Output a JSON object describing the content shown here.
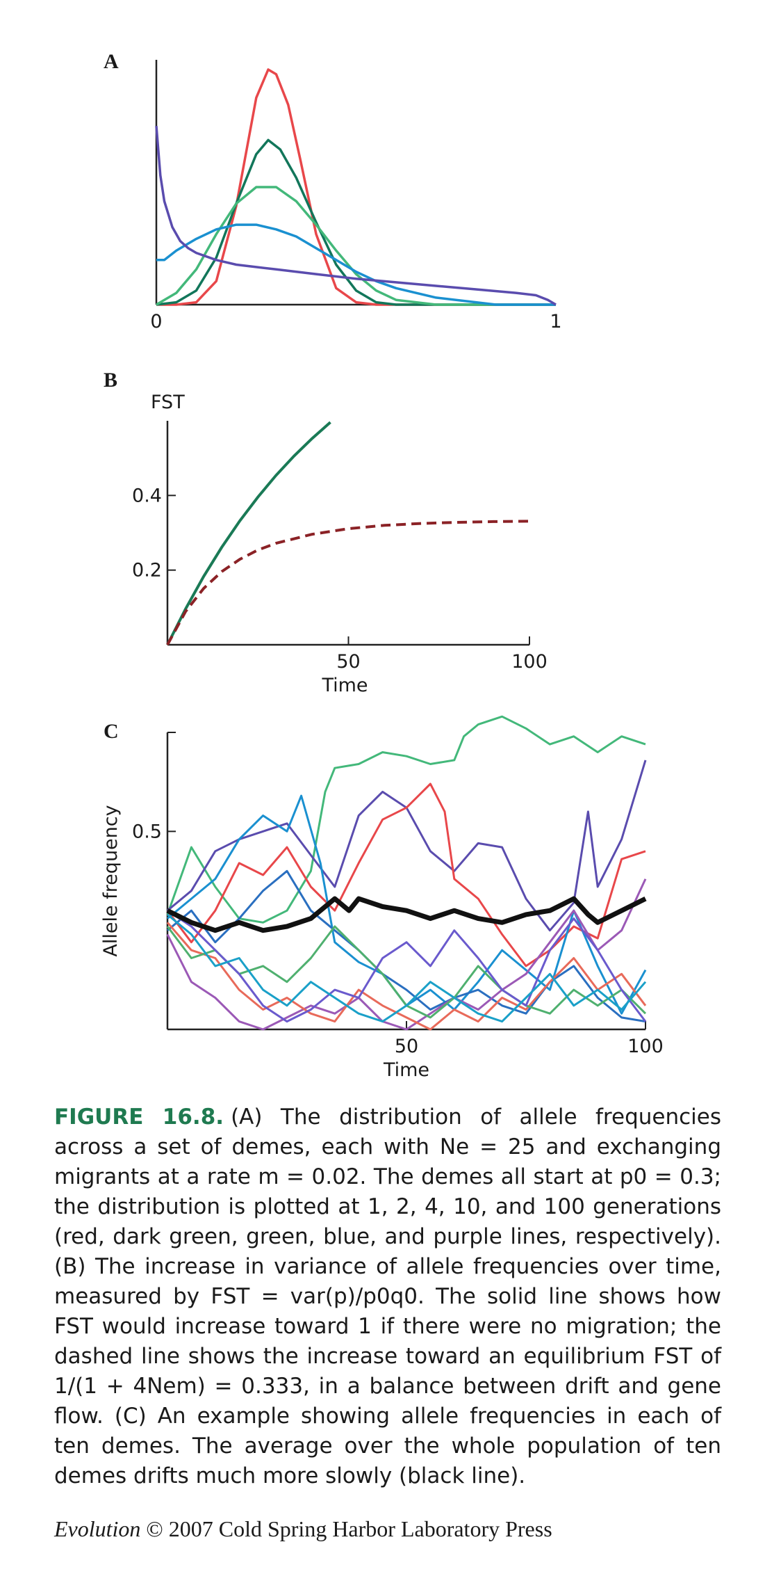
{
  "panels": {
    "a_label": "A",
    "b_label": "B",
    "c_label": "C"
  },
  "caption": {
    "figure_label": "FIGURE 16.8.",
    "text": "(A) The distribution of allele frequencies across a set of demes, each with Ne = 25 and exchanging migrants at a rate m = 0.02. The demes all start at p0 = 0.3; the distribution is plotted at 1, 2, 4, 10, and 100 generations (red, dark green, green, blue, and purple lines, respectively). (B) The increase in variance of allele frequencies over time, measured by FST = var(p)/p0q0. The solid line shows how FST would increase toward 1 if there were no migration; the dashed line shows the increase toward an equilibrium FST of 1/(1 + 4Nem) = 0.333, in a balance between drift and gene flow. (C) An example showing allele frequencies in each of ten demes. The average over the whole population of ten demes drifts much more slowly (black line)."
  },
  "credit": {
    "journal": "Evolution",
    "rest": " © 2007 Cold Spring Harbor Laboratory Press"
  },
  "chart_data": [
    {
      "type": "line",
      "panel": "A",
      "xlim": [
        0,
        1
      ],
      "xticks": [
        "0",
        "1"
      ],
      "ylabel": "",
      "xlabel": "",
      "series": [
        {
          "color": "#e8474a",
          "x": [
            0.0,
            0.05,
            0.1,
            0.15,
            0.2,
            0.25,
            0.28,
            0.3,
            0.33,
            0.36,
            0.4,
            0.45,
            0.5,
            0.55,
            1.0
          ],
          "y": [
            0.0,
            0.0,
            0.01,
            0.1,
            0.42,
            0.88,
            1.0,
            0.98,
            0.85,
            0.62,
            0.3,
            0.07,
            0.01,
            0.0,
            0.0
          ]
        },
        {
          "color": "#12765a",
          "x": [
            0.0,
            0.05,
            0.1,
            0.15,
            0.2,
            0.25,
            0.28,
            0.31,
            0.35,
            0.4,
            0.45,
            0.5,
            0.55,
            0.6,
            1.0
          ],
          "y": [
            0.0,
            0.01,
            0.06,
            0.2,
            0.43,
            0.64,
            0.7,
            0.66,
            0.54,
            0.35,
            0.17,
            0.06,
            0.01,
            0.0,
            0.0
          ]
        },
        {
          "color": "#43b87a",
          "x": [
            0.0,
            0.05,
            0.1,
            0.15,
            0.2,
            0.25,
            0.3,
            0.35,
            0.4,
            0.45,
            0.5,
            0.55,
            0.6,
            0.65,
            0.7,
            1.0
          ],
          "y": [
            0.0,
            0.05,
            0.15,
            0.3,
            0.43,
            0.5,
            0.5,
            0.44,
            0.34,
            0.23,
            0.13,
            0.06,
            0.02,
            0.01,
            0.0,
            0.0
          ]
        },
        {
          "color": "#1a90d0",
          "x": [
            0.0,
            0.02,
            0.05,
            0.1,
            0.15,
            0.2,
            0.25,
            0.3,
            0.35,
            0.4,
            0.45,
            0.5,
            0.55,
            0.6,
            0.7,
            0.8,
            0.85,
            1.0
          ],
          "y": [
            0.19,
            0.19,
            0.23,
            0.28,
            0.32,
            0.34,
            0.34,
            0.32,
            0.29,
            0.24,
            0.19,
            0.14,
            0.1,
            0.07,
            0.03,
            0.01,
            0.0,
            0.0
          ]
        },
        {
          "color": "#5a4cae",
          "x": [
            0.0,
            0.01,
            0.02,
            0.04,
            0.06,
            0.08,
            0.1,
            0.15,
            0.2,
            0.3,
            0.4,
            0.5,
            0.6,
            0.7,
            0.8,
            0.9,
            0.95,
            0.98,
            1.0
          ],
          "y": [
            0.76,
            0.55,
            0.44,
            0.33,
            0.27,
            0.24,
            0.22,
            0.19,
            0.17,
            0.15,
            0.13,
            0.11,
            0.095,
            0.08,
            0.065,
            0.05,
            0.04,
            0.02,
            0.0
          ]
        }
      ]
    },
    {
      "type": "line",
      "panel": "B",
      "ylabel": "FST",
      "xlabel": "Time",
      "xlim": [
        0,
        100
      ],
      "ylim": [
        0,
        0.6
      ],
      "xticks": [
        50,
        100
      ],
      "yticks": [
        0.2,
        0.4
      ],
      "series": [
        {
          "style": "solid",
          "color": "#1a7a56",
          "x": [
            0,
            5,
            10,
            15,
            20,
            25,
            30,
            35,
            40,
            45
          ],
          "y": [
            0,
            0.096,
            0.183,
            0.261,
            0.332,
            0.396,
            0.454,
            0.506,
            0.553,
            0.596
          ]
        },
        {
          "style": "dashed",
          "color": "#8b2226",
          "x": [
            0,
            5,
            10,
            15,
            20,
            25,
            30,
            40,
            50,
            60,
            70,
            80,
            90,
            100
          ],
          "y": [
            0,
            0.089,
            0.151,
            0.196,
            0.229,
            0.254,
            0.272,
            0.296,
            0.311,
            0.32,
            0.325,
            0.328,
            0.33,
            0.331
          ]
        }
      ]
    },
    {
      "type": "line",
      "panel": "C",
      "ylabel": "Allele frequency",
      "xlabel": "Time",
      "xlim": [
        0,
        100
      ],
      "ylim": [
        0,
        0.75
      ],
      "xticks": [
        50,
        100
      ],
      "yticks": [
        0.5
      ],
      "series": [
        {
          "color": "#43b87a",
          "x": [
            0,
            5,
            10,
            15,
            20,
            25,
            30,
            33,
            35,
            40,
            45,
            50,
            55,
            60,
            62,
            65,
            70,
            75,
            80,
            85,
            90,
            95,
            100
          ],
          "y": [
            0.29,
            0.46,
            0.36,
            0.28,
            0.27,
            0.3,
            0.4,
            0.6,
            0.66,
            0.67,
            0.7,
            0.69,
            0.67,
            0.68,
            0.74,
            0.77,
            0.79,
            0.76,
            0.72,
            0.74,
            0.7,
            0.74,
            0.72
          ]
        },
        {
          "color": "#5a4cae",
          "x": [
            0,
            5,
            10,
            15,
            20,
            25,
            30,
            35,
            40,
            45,
            50,
            55,
            60,
            65,
            70,
            75,
            80,
            85,
            88,
            90,
            95,
            100
          ],
          "y": [
            0.3,
            0.35,
            0.45,
            0.48,
            0.5,
            0.52,
            0.44,
            0.36,
            0.54,
            0.6,
            0.56,
            0.45,
            0.4,
            0.47,
            0.46,
            0.33,
            0.25,
            0.32,
            0.55,
            0.36,
            0.48,
            0.68
          ]
        },
        {
          "color": "#e8474a",
          "x": [
            0,
            5,
            10,
            15,
            20,
            25,
            30,
            35,
            40,
            45,
            50,
            55,
            58,
            60,
            65,
            70,
            75,
            80,
            85,
            90,
            95,
            100
          ],
          "y": [
            0.3,
            0.22,
            0.3,
            0.42,
            0.39,
            0.46,
            0.36,
            0.3,
            0.42,
            0.53,
            0.56,
            0.62,
            0.55,
            0.38,
            0.33,
            0.24,
            0.16,
            0.2,
            0.26,
            0.23,
            0.43,
            0.45
          ]
        },
        {
          "color": "#1a90d0",
          "x": [
            0,
            5,
            10,
            15,
            20,
            25,
            28,
            32,
            35,
            40,
            45,
            50,
            55,
            60,
            65,
            70,
            75,
            80,
            85,
            90,
            95,
            100
          ],
          "y": [
            0.28,
            0.33,
            0.38,
            0.48,
            0.54,
            0.5,
            0.59,
            0.42,
            0.22,
            0.17,
            0.14,
            0.06,
            0.1,
            0.05,
            0.12,
            0.2,
            0.15,
            0.1,
            0.3,
            0.16,
            0.04,
            0.15
          ]
        },
        {
          "color": "#2a6fc0",
          "x": [
            0,
            5,
            10,
            15,
            20,
            25,
            30,
            35,
            40,
            45,
            50,
            55,
            60,
            65,
            70,
            75,
            80,
            85,
            90,
            95,
            100
          ],
          "y": [
            0.25,
            0.3,
            0.22,
            0.28,
            0.35,
            0.4,
            0.3,
            0.25,
            0.2,
            0.14,
            0.1,
            0.05,
            0.08,
            0.1,
            0.06,
            0.04,
            0.12,
            0.16,
            0.08,
            0.03,
            0.02
          ]
        },
        {
          "color": "#9b59b6",
          "x": [
            0,
            5,
            10,
            15,
            20,
            25,
            30,
            35,
            40,
            45,
            50,
            55,
            60,
            65,
            70,
            75,
            80,
            85,
            90,
            95,
            100
          ],
          "y": [
            0.24,
            0.12,
            0.08,
            0.02,
            0.0,
            0.03,
            0.06,
            0.04,
            0.08,
            0.02,
            0.0,
            0.04,
            0.08,
            0.05,
            0.1,
            0.14,
            0.22,
            0.3,
            0.2,
            0.25,
            0.38
          ]
        },
        {
          "color": "#e86a5a",
          "x": [
            0,
            5,
            10,
            15,
            20,
            25,
            30,
            35,
            40,
            45,
            50,
            55,
            60,
            65,
            70,
            75,
            80,
            85,
            90,
            95,
            100
          ],
          "y": [
            0.27,
            0.2,
            0.18,
            0.1,
            0.05,
            0.08,
            0.04,
            0.02,
            0.1,
            0.06,
            0.03,
            0.0,
            0.05,
            0.02,
            0.08,
            0.05,
            0.12,
            0.18,
            0.1,
            0.14,
            0.06
          ]
        },
        {
          "color": "#4fb06f",
          "x": [
            0,
            5,
            10,
            15,
            20,
            25,
            30,
            35,
            40,
            45,
            50,
            55,
            60,
            65,
            70,
            75,
            80,
            85,
            90,
            95,
            100
          ],
          "y": [
            0.26,
            0.18,
            0.2,
            0.14,
            0.16,
            0.12,
            0.18,
            0.26,
            0.2,
            0.14,
            0.06,
            0.03,
            0.08,
            0.16,
            0.1,
            0.06,
            0.04,
            0.1,
            0.06,
            0.1,
            0.04
          ]
        },
        {
          "color": "#6a5acd",
          "x": [
            0,
            5,
            10,
            15,
            20,
            25,
            30,
            35,
            40,
            45,
            50,
            55,
            60,
            65,
            70,
            75,
            80,
            85,
            90,
            95,
            100
          ],
          "y": [
            0.3,
            0.26,
            0.2,
            0.14,
            0.06,
            0.02,
            0.05,
            0.1,
            0.08,
            0.18,
            0.22,
            0.16,
            0.25,
            0.18,
            0.1,
            0.06,
            0.2,
            0.28,
            0.2,
            0.1,
            0.02
          ]
        },
        {
          "color": "#1aa0c8",
          "x": [
            0,
            5,
            10,
            15,
            20,
            25,
            30,
            35,
            40,
            45,
            50,
            55,
            60,
            65,
            70,
            75,
            80,
            85,
            90,
            95,
            100
          ],
          "y": [
            0.29,
            0.24,
            0.16,
            0.18,
            0.1,
            0.06,
            0.12,
            0.08,
            0.04,
            0.02,
            0.06,
            0.12,
            0.08,
            0.04,
            0.02,
            0.08,
            0.14,
            0.06,
            0.1,
            0.05,
            0.12
          ]
        }
      ],
      "average": {
        "color": "#111111",
        "x": [
          0,
          5,
          10,
          15,
          20,
          25,
          30,
          35,
          38,
          40,
          45,
          50,
          55,
          60,
          65,
          70,
          75,
          80,
          85,
          88,
          90,
          95,
          100
        ],
        "y": [
          0.3,
          0.27,
          0.25,
          0.27,
          0.25,
          0.26,
          0.28,
          0.33,
          0.3,
          0.33,
          0.31,
          0.3,
          0.28,
          0.3,
          0.28,
          0.27,
          0.29,
          0.3,
          0.33,
          0.29,
          0.27,
          0.3,
          0.33
        ]
      }
    }
  ]
}
